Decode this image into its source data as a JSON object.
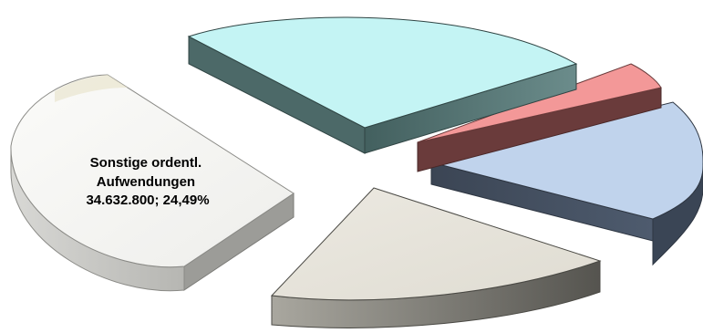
{
  "chart_data": {
    "type": "pie",
    "style": "3d-exploded",
    "legend": "none",
    "slices": [
      {
        "label_lines": [
          "Sonstige ordentl.",
          "Aufwendungen",
          "34.632.800; 24,49%"
        ],
        "value": 34632800,
        "percent": 24.49,
        "color_top": "#f6f6f4",
        "color_side": "#cfcfcb"
      },
      {
        "label_lines": [],
        "percent": 27.5,
        "color_top": "#c4f4f4",
        "color_side": "#4e6d6d"
      },
      {
        "label_lines": [],
        "percent": 4.2,
        "color_top": "#f39898",
        "color_side": "#6a3b3b"
      },
      {
        "label_lines": [],
        "percent": 21.1,
        "color_top": "#c0d3ec",
        "color_side": "#434e5e"
      },
      {
        "label_lines": [],
        "percent": 22.7,
        "color_top": "#e6e3da",
        "color_side": "#5e5d57"
      }
    ]
  }
}
